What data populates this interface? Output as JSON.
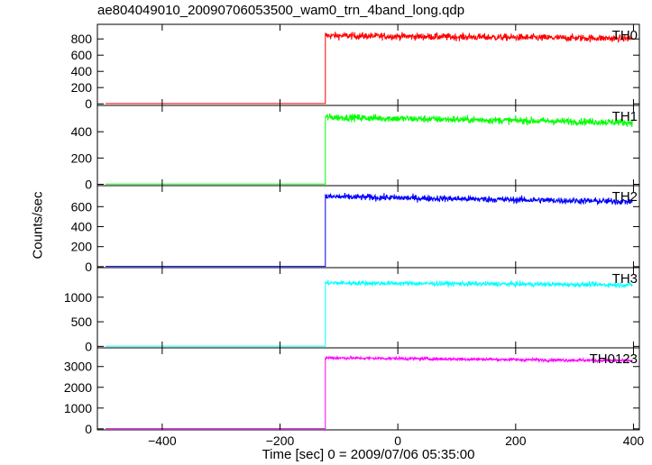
{
  "chart_data": {
    "type": "line",
    "title": "ae804049010_20090706053500_wam0_trn_4band_long.qdp",
    "xlabel": "Time [sec] 0 = 2009/07/06 05:35:00",
    "ylabel": "Counts/sec",
    "xlim": [
      -510,
      410
    ],
    "x_ticks": [
      -400,
      -200,
      0,
      200,
      400
    ],
    "step_time": -123,
    "panels": [
      {
        "name": "TH0",
        "color": "#ff0000",
        "ylim": [
          -20,
          980
        ],
        "y_ticks": [
          0,
          200,
          400,
          600,
          800
        ],
        "pre_level": 3,
        "post_start": 840,
        "post_end": 805,
        "noise": 40
      },
      {
        "name": "TH1",
        "color": "#00ff00",
        "ylim": [
          -10,
          600
        ],
        "y_ticks": [
          0,
          200,
          400
        ],
        "pre_level": 2,
        "post_start": 510,
        "post_end": 470,
        "noise": 25
      },
      {
        "name": "TH2",
        "color": "#0000ff",
        "ylim": [
          -10,
          810
        ],
        "y_ticks": [
          0,
          200,
          400,
          600
        ],
        "pre_level": 3,
        "post_start": 700,
        "post_end": 650,
        "noise": 30
      },
      {
        "name": "TH3",
        "color": "#00ffff",
        "ylim": [
          -30,
          1600
        ],
        "y_ticks": [
          0,
          500,
          1000
        ],
        "pre_level": 5,
        "post_start": 1290,
        "post_end": 1250,
        "noise": 45
      },
      {
        "name": "TH0123",
        "color": "#ff00ff",
        "ylim": [
          -50,
          3900
        ],
        "y_ticks": [
          0,
          1000,
          2000,
          3000
        ],
        "pre_level": 12,
        "post_start": 3420,
        "post_end": 3280,
        "noise": 70
      }
    ]
  }
}
